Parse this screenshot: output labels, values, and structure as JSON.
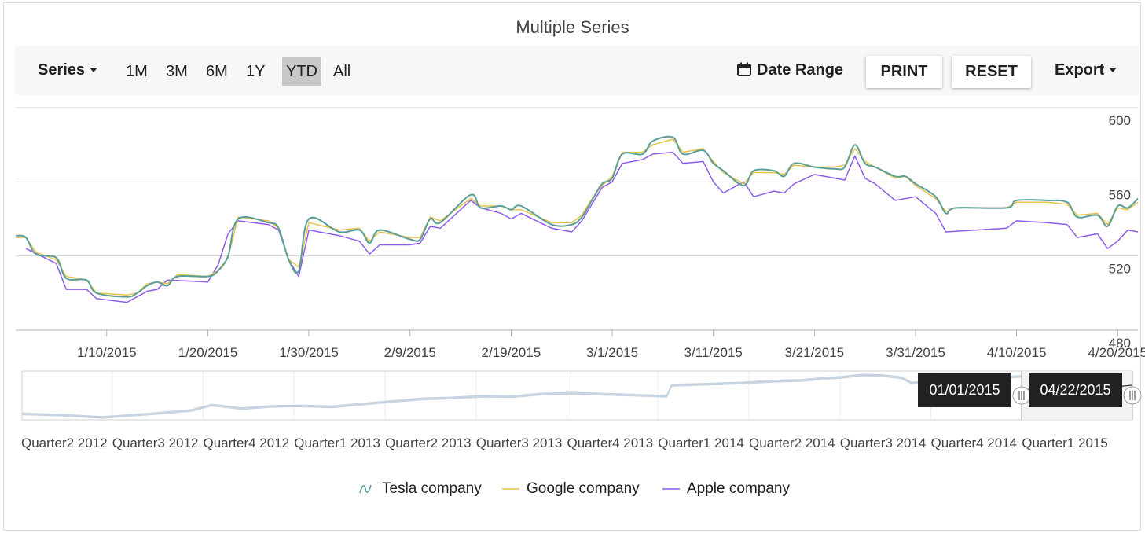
{
  "title": "Multiple Series",
  "toolbar": {
    "series_label": "Series",
    "periods": [
      "1M",
      "3M",
      "6M",
      "1Y",
      "YTD",
      "All"
    ],
    "selected_period": "YTD",
    "date_range_label": "Date Range",
    "print_label": "PRINT",
    "reset_label": "RESET",
    "export_label": "Export"
  },
  "navigator": {
    "start_label": "01/01/2015",
    "end_label": "04/22/2015",
    "x_ticks": [
      "Quarter2 2012",
      "Quarter3 2012",
      "Quarter4 2012",
      "Quarter1 2013",
      "Quarter2 2013",
      "Quarter3 2013",
      "Quarter4 2013",
      "Quarter1 2014",
      "Quarter2 2014",
      "Quarter3 2014",
      "Quarter4 2014",
      "Quarter1 2015"
    ]
  },
  "colors": {
    "tesla": "#5a9e9a",
    "google": "#e6c24c",
    "apple": "#8e5cec",
    "navigator_line": "#c5d2e0"
  },
  "legend_icons": {
    "tesla": "spline-icon",
    "google": "line-icon",
    "apple": "line-icon"
  },
  "chart_data": {
    "type": "line",
    "title": "Multiple Series",
    "xlabel": "",
    "ylabel": "",
    "x_ticks": [
      "1/10/2015",
      "1/20/2015",
      "1/30/2015",
      "2/9/2015",
      "2/19/2015",
      "3/1/2015",
      "3/11/2015",
      "3/21/2015",
      "3/31/2015",
      "4/10/2015",
      "4/20/2015"
    ],
    "y_ticks": [
      480,
      520,
      560,
      600
    ],
    "xlim": [
      "2015-01-01",
      "2015-04-22"
    ],
    "ylim": [
      480,
      600
    ],
    "y_axis_position": "right",
    "legend": "bottom",
    "series": [
      {
        "name": "Tesla company",
        "style": "spline",
        "points": [
          [
            "2015-01-01",
            531
          ],
          [
            "2015-01-02",
            530
          ],
          [
            "2015-01-03",
            521
          ],
          [
            "2015-01-05",
            519
          ],
          [
            "2015-01-06",
            508
          ],
          [
            "2015-01-08",
            507
          ],
          [
            "2015-01-09",
            500
          ],
          [
            "2015-01-12",
            498
          ],
          [
            "2015-01-13",
            500
          ],
          [
            "2015-01-14",
            504
          ],
          [
            "2015-01-15",
            506
          ],
          [
            "2015-01-16",
            504
          ],
          [
            "2015-01-17",
            509
          ],
          [
            "2015-01-20",
            509
          ],
          [
            "2015-01-21",
            512
          ],
          [
            "2015-01-22",
            520
          ],
          [
            "2015-01-23",
            540
          ],
          [
            "2015-01-26",
            538
          ],
          [
            "2015-01-27",
            535
          ],
          [
            "2015-01-28",
            518
          ],
          [
            "2015-01-29",
            512
          ],
          [
            "2015-01-30",
            540
          ],
          [
            "2015-02-02",
            533
          ],
          [
            "2015-02-04",
            534
          ],
          [
            "2015-02-05",
            527
          ],
          [
            "2015-02-06",
            534
          ],
          [
            "2015-02-09",
            529
          ],
          [
            "2015-02-10",
            529
          ],
          [
            "2015-02-11",
            540
          ],
          [
            "2015-02-12",
            538
          ],
          [
            "2015-02-15",
            553
          ],
          [
            "2015-02-16",
            546
          ],
          [
            "2015-02-18",
            547
          ],
          [
            "2015-02-19",
            545
          ],
          [
            "2015-02-20",
            547
          ],
          [
            "2015-02-23",
            537
          ],
          [
            "2015-02-25",
            537
          ],
          [
            "2015-02-26",
            541
          ],
          [
            "2015-02-27",
            550
          ],
          [
            "2015-02-28",
            559
          ],
          [
            "2015-03-01",
            562
          ],
          [
            "2015-03-02",
            575
          ],
          [
            "2015-03-04",
            575
          ],
          [
            "2015-03-05",
            582
          ],
          [
            "2015-03-07",
            584
          ],
          [
            "2015-03-08",
            575
          ],
          [
            "2015-03-10",
            577
          ],
          [
            "2015-03-11",
            570
          ],
          [
            "2015-03-12",
            566
          ],
          [
            "2015-03-14",
            558
          ],
          [
            "2015-03-15",
            566
          ],
          [
            "2015-03-17",
            566
          ],
          [
            "2015-03-18",
            563
          ],
          [
            "2015-03-19",
            570
          ],
          [
            "2015-03-21",
            568
          ],
          [
            "2015-03-23",
            567
          ],
          [
            "2015-03-24",
            568
          ],
          [
            "2015-03-25",
            580
          ],
          [
            "2015-03-26",
            570
          ],
          [
            "2015-03-27",
            568
          ],
          [
            "2015-03-29",
            563
          ],
          [
            "2015-03-30",
            563
          ],
          [
            "2015-03-31",
            559
          ],
          [
            "2015-04-02",
            552
          ],
          [
            "2015-04-03",
            543
          ],
          [
            "2015-04-04",
            546
          ],
          [
            "2015-04-09",
            546
          ],
          [
            "2015-04-10",
            550
          ],
          [
            "2015-04-13",
            550
          ],
          [
            "2015-04-15",
            549
          ],
          [
            "2015-04-16",
            541
          ],
          [
            "2015-04-18",
            542
          ],
          [
            "2015-04-19",
            536
          ],
          [
            "2015-04-20",
            547
          ],
          [
            "2015-04-21",
            546
          ],
          [
            "2015-04-22",
            551
          ]
        ]
      },
      {
        "name": "Google company",
        "style": "line",
        "points": [
          [
            "2015-01-01",
            530
          ],
          [
            "2015-01-02",
            530
          ],
          [
            "2015-01-03",
            522
          ],
          [
            "2015-01-05",
            518
          ],
          [
            "2015-01-06",
            509
          ],
          [
            "2015-01-08",
            507
          ],
          [
            "2015-01-09",
            500
          ],
          [
            "2015-01-12",
            499
          ],
          [
            "2015-01-13",
            500
          ],
          [
            "2015-01-14",
            505
          ],
          [
            "2015-01-15",
            506
          ],
          [
            "2015-01-16",
            505
          ],
          [
            "2015-01-17",
            510
          ],
          [
            "2015-01-20",
            509
          ],
          [
            "2015-01-21",
            512
          ],
          [
            "2015-01-22",
            519
          ],
          [
            "2015-01-23",
            541
          ],
          [
            "2015-01-26",
            539
          ],
          [
            "2015-01-27",
            535
          ],
          [
            "2015-01-28",
            518
          ],
          [
            "2015-01-29",
            514
          ],
          [
            "2015-01-30",
            538
          ],
          [
            "2015-02-02",
            534
          ],
          [
            "2015-02-04",
            535
          ],
          [
            "2015-02-05",
            528
          ],
          [
            "2015-02-06",
            533
          ],
          [
            "2015-02-09",
            530
          ],
          [
            "2015-02-10",
            530
          ],
          [
            "2015-02-11",
            541
          ],
          [
            "2015-02-12",
            539
          ],
          [
            "2015-02-15",
            551
          ],
          [
            "2015-02-16",
            547
          ],
          [
            "2015-02-18",
            547
          ],
          [
            "2015-02-19",
            545
          ],
          [
            "2015-02-20",
            545
          ],
          [
            "2015-02-23",
            538
          ],
          [
            "2015-02-25",
            538
          ],
          [
            "2015-02-26",
            542
          ],
          [
            "2015-02-27",
            551
          ],
          [
            "2015-02-28",
            558
          ],
          [
            "2015-03-01",
            563
          ],
          [
            "2015-03-02",
            576
          ],
          [
            "2015-03-04",
            576
          ],
          [
            "2015-03-05",
            580
          ],
          [
            "2015-03-07",
            583
          ],
          [
            "2015-03-08",
            576
          ],
          [
            "2015-03-10",
            578
          ],
          [
            "2015-03-11",
            571
          ],
          [
            "2015-03-12",
            565
          ],
          [
            "2015-03-14",
            559
          ],
          [
            "2015-03-15",
            565
          ],
          [
            "2015-03-17",
            565
          ],
          [
            "2015-03-18",
            564
          ],
          [
            "2015-03-19",
            569
          ],
          [
            "2015-03-21",
            568
          ],
          [
            "2015-03-23",
            568
          ],
          [
            "2015-03-24",
            569
          ],
          [
            "2015-03-25",
            578
          ],
          [
            "2015-03-26",
            571
          ],
          [
            "2015-03-27",
            568
          ],
          [
            "2015-03-29",
            562
          ],
          [
            "2015-03-30",
            563
          ],
          [
            "2015-03-31",
            558
          ],
          [
            "2015-04-02",
            551
          ],
          [
            "2015-04-03",
            544
          ],
          [
            "2015-04-04",
            546
          ],
          [
            "2015-04-09",
            546
          ],
          [
            "2015-04-10",
            549
          ],
          [
            "2015-04-13",
            549
          ],
          [
            "2015-04-15",
            548
          ],
          [
            "2015-04-16",
            542
          ],
          [
            "2015-04-18",
            543
          ],
          [
            "2015-04-19",
            537
          ],
          [
            "2015-04-20",
            546
          ],
          [
            "2015-04-21",
            545
          ],
          [
            "2015-04-22",
            549
          ]
        ]
      },
      {
        "name": "Apple company",
        "style": "line",
        "points": [
          [
            "2015-01-02",
            524
          ],
          [
            "2015-01-05",
            516
          ],
          [
            "2015-01-06",
            502
          ],
          [
            "2015-01-08",
            502
          ],
          [
            "2015-01-09",
            497
          ],
          [
            "2015-01-12",
            495
          ],
          [
            "2015-01-14",
            501
          ],
          [
            "2015-01-15",
            502
          ],
          [
            "2015-01-16",
            507
          ],
          [
            "2015-01-20",
            506
          ],
          [
            "2015-01-21",
            515
          ],
          [
            "2015-01-22",
            532
          ],
          [
            "2015-01-23",
            539
          ],
          [
            "2015-01-26",
            537
          ],
          [
            "2015-01-27",
            534
          ],
          [
            "2015-01-28",
            518
          ],
          [
            "2015-01-29",
            509
          ],
          [
            "2015-01-30",
            534
          ],
          [
            "2015-02-02",
            531
          ],
          [
            "2015-02-04",
            528
          ],
          [
            "2015-02-05",
            521
          ],
          [
            "2015-02-06",
            526
          ],
          [
            "2015-02-09",
            526
          ],
          [
            "2015-02-10",
            527
          ],
          [
            "2015-02-11",
            536
          ],
          [
            "2015-02-12",
            535
          ],
          [
            "2015-02-15",
            550
          ],
          [
            "2015-02-16",
            546
          ],
          [
            "2015-02-18",
            543
          ],
          [
            "2015-02-19",
            540
          ],
          [
            "2015-02-20",
            543
          ],
          [
            "2015-02-23",
            535
          ],
          [
            "2015-02-25",
            533
          ],
          [
            "2015-02-26",
            539
          ],
          [
            "2015-02-27",
            548
          ],
          [
            "2015-02-28",
            557
          ],
          [
            "2015-03-01",
            560
          ],
          [
            "2015-03-02",
            570
          ],
          [
            "2015-03-04",
            572
          ],
          [
            "2015-03-05",
            575
          ],
          [
            "2015-03-07",
            576
          ],
          [
            "2015-03-08",
            570
          ],
          [
            "2015-03-10",
            571
          ],
          [
            "2015-03-11",
            560
          ],
          [
            "2015-03-12",
            554
          ],
          [
            "2015-03-14",
            560
          ],
          [
            "2015-03-15",
            552
          ],
          [
            "2015-03-17",
            555
          ],
          [
            "2015-03-18",
            554
          ],
          [
            "2015-03-19",
            559
          ],
          [
            "2015-03-21",
            564
          ],
          [
            "2015-03-23",
            562
          ],
          [
            "2015-03-24",
            561
          ],
          [
            "2015-03-25",
            574
          ],
          [
            "2015-03-26",
            562
          ],
          [
            "2015-03-27",
            559
          ],
          [
            "2015-03-29",
            550
          ],
          [
            "2015-03-30",
            551
          ],
          [
            "2015-03-31",
            552
          ],
          [
            "2015-04-02",
            543
          ],
          [
            "2015-04-03",
            533
          ],
          [
            "2015-04-09",
            535
          ],
          [
            "2015-04-10",
            539
          ],
          [
            "2015-04-13",
            538
          ],
          [
            "2015-04-15",
            537
          ],
          [
            "2015-04-16",
            530
          ],
          [
            "2015-04-18",
            532
          ],
          [
            "2015-04-19",
            524
          ],
          [
            "2015-04-20",
            528
          ],
          [
            "2015-04-21",
            534
          ],
          [
            "2015-04-22",
            533
          ]
        ]
      }
    ]
  }
}
